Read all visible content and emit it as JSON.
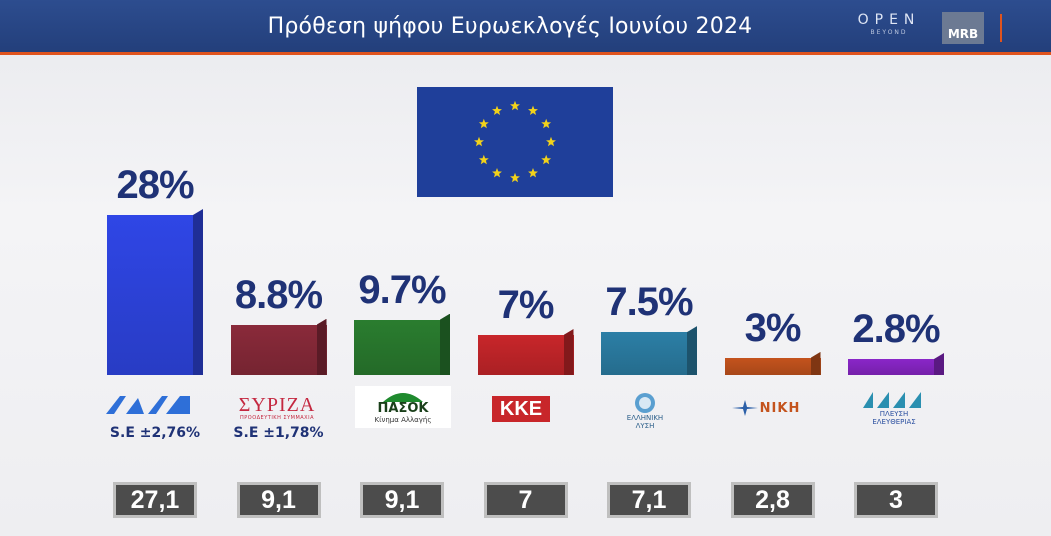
{
  "header": {
    "title": "Πρόθεση ψήφου Ευρωεκλογές Ιουνίου 2024",
    "brand": "OPEN",
    "brand_sub": "BEYOND",
    "mrb": "MRB"
  },
  "chart_data": {
    "type": "bar",
    "categories": [
      "ΝΔ",
      "ΣΥΡΙΖΑ",
      "ΠΑΣΟΚ",
      "ΚΚΕ",
      "ΕΛΛΗΝΙΚΗ ΛΥΣΗ",
      "ΝΙΚΗ",
      "ΠΛΕΥΣΗ ΕΛΕΥΘΕΡΙΑΣ"
    ],
    "values": [
      28,
      8.8,
      9.7,
      7,
      7.5,
      3,
      2.8
    ],
    "value_labels": [
      "28%",
      "8.8%",
      "9.7%",
      "7%",
      "7.5%",
      "3%",
      "2.8%"
    ],
    "margin_labels": [
      "S.E ±2,76%",
      "S.E ±1,78%",
      "",
      "",
      "",
      "",
      ""
    ],
    "previous_results": [
      "27,1",
      "9,1",
      "9,1",
      "7",
      "7,1",
      "2,8",
      "3"
    ],
    "colors": [
      "#2f46e6",
      "#8a2a3a",
      "#2a7d2f",
      "#c8262a",
      "#2c7fa6",
      "#c4531d",
      "#8a26c8"
    ],
    "title": "Πρόθεση ψήφου Ευρωεκλογές Ιουνίου 2024",
    "ylim": [
      0,
      30
    ],
    "grid": false
  },
  "logos": {
    "nd": "ΝΔ",
    "syriza": "ΣΥΡΙΖΑ",
    "syriza_sub": "ΠΡΟΟΔΕΥΤΙΚΗ ΣΥΜΜΑΧΙΑ",
    "pasok": "ΠΑΣΟΚ",
    "pasok_sub": "Κίνημα Αλλαγής",
    "kke": "ΚΚΕ",
    "el_lysi_1": "ΕΛΛΗΝΙΚΗ",
    "el_lysi_2": "ΛΥΣΗ",
    "niki": "ΝΙΚΗ",
    "plefsi_1": "ΠΛΕΥΣΗ",
    "plefsi_2": "ΕΛΕΥΘΕΡΙΑΣ"
  }
}
